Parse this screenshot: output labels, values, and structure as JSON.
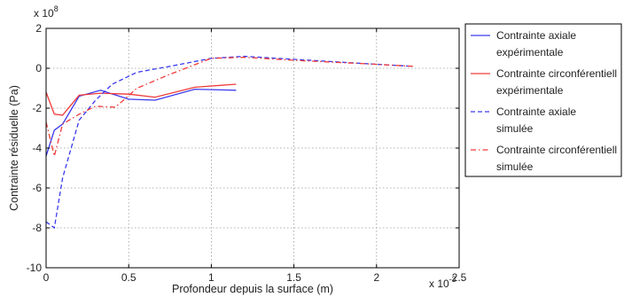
{
  "chart_data": {
    "type": "line",
    "xlabel": "Profondeur depuis la surface (m)",
    "ylabel": "Contrainte résiduelle (Pa)",
    "x_multiplier": "x 10",
    "x_multiplier_exp": "-3",
    "y_multiplier": "x 10",
    "y_multiplier_exp": "8",
    "xlim": [
      0,
      2.5
    ],
    "ylim": [
      -10,
      2
    ],
    "x_ticks": [
      "0",
      "0.5",
      "1",
      "1.5",
      "2",
      "2.5"
    ],
    "y_ticks": [
      "2",
      "0",
      "-2",
      "-4",
      "-6",
      "-8",
      "-10"
    ],
    "grid": true,
    "legend_position": "outside-right",
    "series": [
      {
        "name_lines": [
          "Contrainte axiale",
          "expérimentale"
        ],
        "color": "#3a3af0",
        "dash": "solid",
        "x": [
          0,
          0.05,
          0.1,
          0.2,
          0.33,
          0.5,
          0.66,
          0.9,
          1.15
        ],
        "y": [
          -4.4,
          -3.1,
          -2.8,
          -1.4,
          -1.1,
          -1.55,
          -1.6,
          -1.05,
          -1.1
        ]
      },
      {
        "name_lines": [
          "Contrainte circonférentiell",
          "expérimentale"
        ],
        "color": "#f03a3a",
        "dash": "solid",
        "x": [
          0,
          0.05,
          0.1,
          0.2,
          0.33,
          0.5,
          0.66,
          0.9,
          1.15
        ],
        "y": [
          -1.2,
          -2.3,
          -2.35,
          -1.35,
          -1.25,
          -1.3,
          -1.45,
          -0.95,
          -0.8
        ]
      },
      {
        "name_lines": [
          "Contrainte axiale",
          "simulée"
        ],
        "color": "#3a3af0",
        "dash": "dashed",
        "x": [
          0,
          0.05,
          0.1,
          0.2,
          0.3,
          0.4,
          0.55,
          0.75,
          1.0,
          1.2,
          1.5,
          2.0,
          2.22
        ],
        "y": [
          -7.7,
          -8.0,
          -5.5,
          -2.6,
          -1.6,
          -0.8,
          -0.2,
          0.1,
          0.5,
          0.6,
          0.45,
          0.2,
          0.1
        ]
      },
      {
        "name_lines": [
          "Contrainte circonférentiell",
          "simulée"
        ],
        "color": "#f03a3a",
        "dash": "dashdot",
        "x": [
          0,
          0.05,
          0.1,
          0.2,
          0.3,
          0.42,
          0.55,
          0.75,
          1.0,
          1.2,
          1.5,
          2.0,
          2.22
        ],
        "y": [
          -2.7,
          -4.4,
          -2.8,
          -2.3,
          -1.9,
          -1.95,
          -1.0,
          -0.3,
          0.5,
          0.55,
          0.4,
          0.2,
          0.1
        ]
      }
    ]
  }
}
